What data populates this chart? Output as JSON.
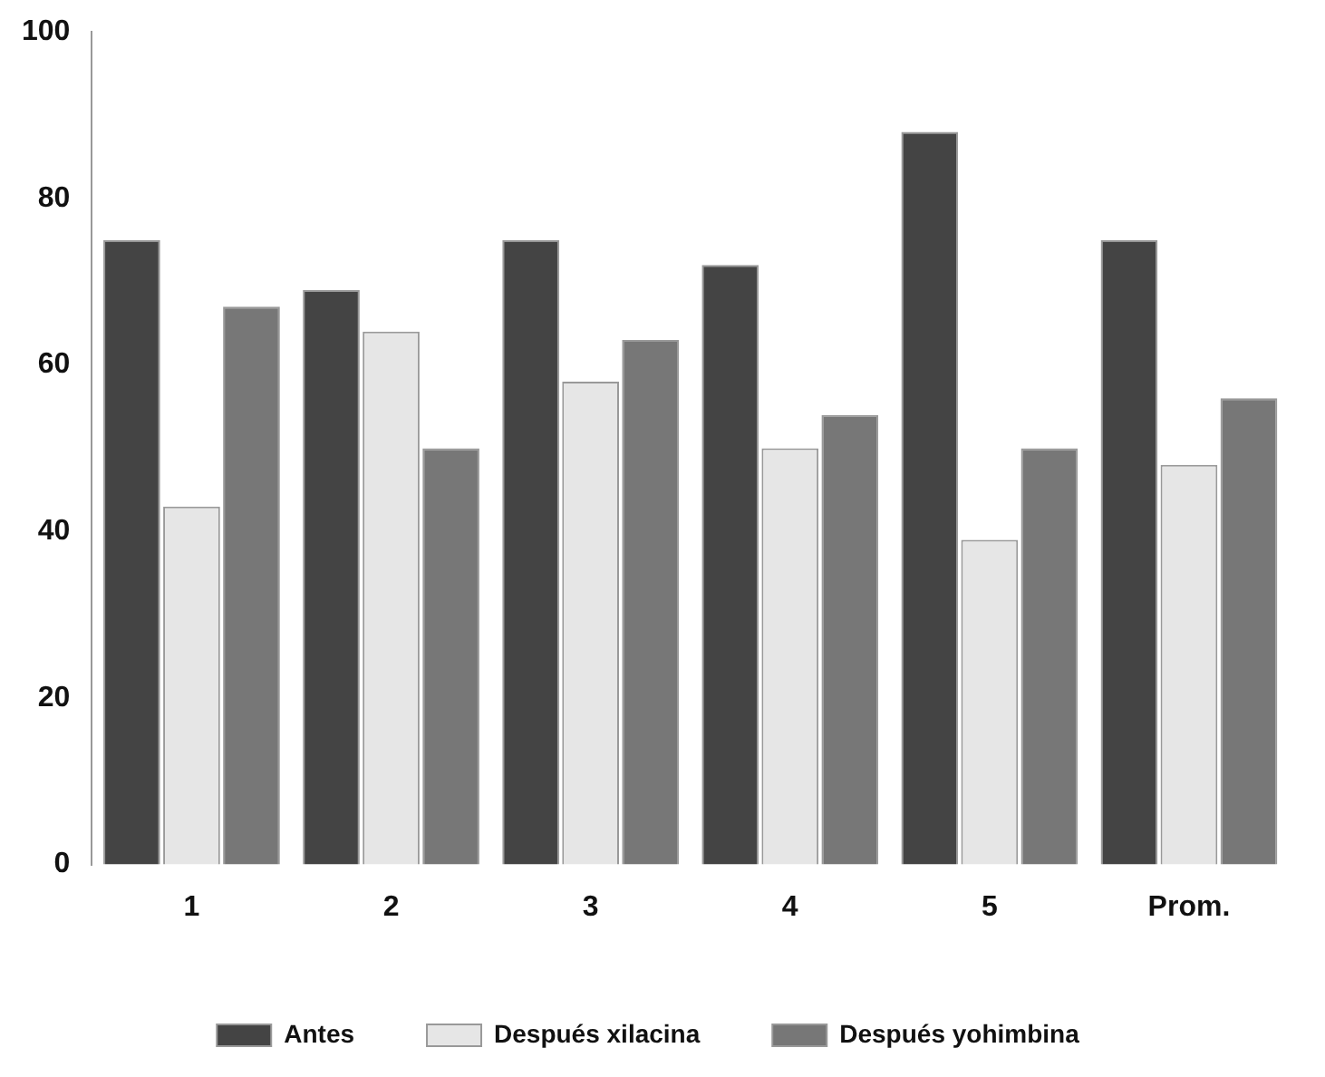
{
  "chart_data": {
    "type": "bar",
    "categories": [
      "1",
      "2",
      "3",
      "4",
      "5",
      "Prom."
    ],
    "series": [
      {
        "name": "Antes",
        "color": "#444444",
        "values": [
          75,
          69,
          75,
          72,
          88,
          75
        ]
      },
      {
        "name": "Después xilacina",
        "color": "#e6e6e6",
        "values": [
          43,
          64,
          58,
          50,
          39,
          48
        ]
      },
      {
        "name": "Después yohimbina",
        "color": "#777777",
        "values": [
          67,
          50,
          63,
          54,
          50,
          56
        ]
      }
    ],
    "ylim": [
      0,
      100
    ],
    "yticks": [
      0,
      20,
      40,
      60,
      80,
      100
    ],
    "grid": false,
    "legend": "bottom"
  }
}
